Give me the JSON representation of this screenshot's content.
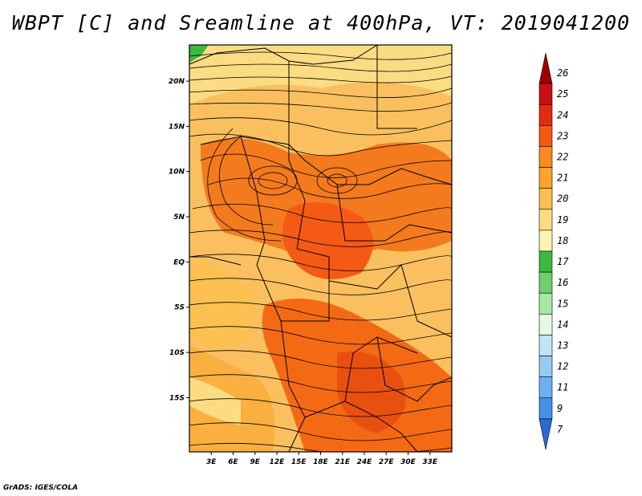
{
  "title": "WBPT [C] and Sreamline at 400hPa, VT: 2019041200",
  "footer": "GrADS: IGES/COLA",
  "map": {
    "lon_range": [
      0,
      36
    ],
    "lat_range": [
      -21,
      24
    ],
    "lon_ticks": [
      "3E",
      "6E",
      "9E",
      "12E",
      "15E",
      "18E",
      "21E",
      "24E",
      "27E",
      "30E",
      "33E"
    ],
    "lat_ticks": [
      "20N",
      "15N",
      "10N",
      "5N",
      "EQ",
      "5S",
      "10S",
      "15S"
    ]
  },
  "colorbar": {
    "labels": [
      "26",
      "25",
      "24",
      "23",
      "22",
      "21",
      "20",
      "19",
      "18",
      "17",
      "16",
      "15",
      "14",
      "13",
      "12",
      "11",
      "9",
      "7"
    ],
    "colors": [
      "#a00000",
      "#c81010",
      "#e42a10",
      "#f45a14",
      "#fa8a1e",
      "#faa42c",
      "#fcc050",
      "#fcdc82",
      "#fcf4b2",
      "#3cba3c",
      "#6cd06c",
      "#a4e8a4",
      "#e4fae4",
      "#c0e4f8",
      "#94ccf4",
      "#6cb2f0",
      "#4690e8",
      "#2a6ad8"
    ]
  }
}
